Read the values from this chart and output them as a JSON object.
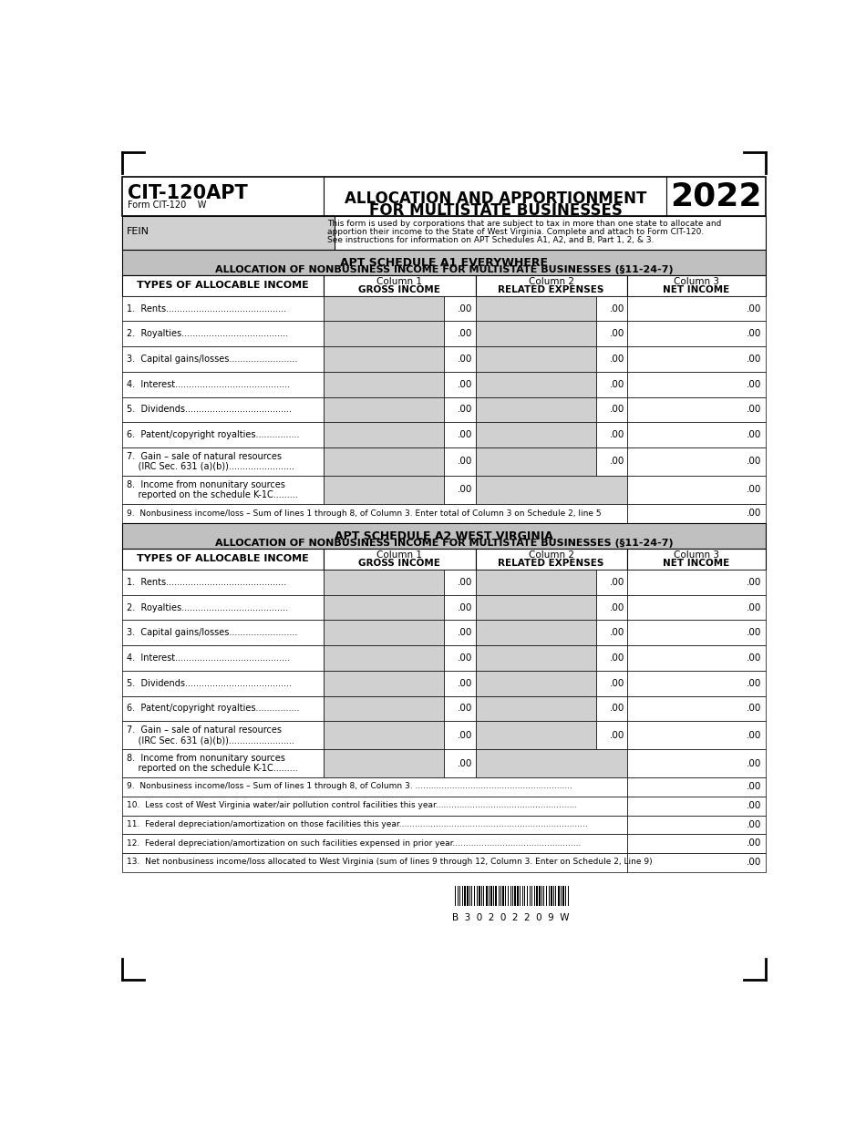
{
  "title_left_bold": "CIT-120APT",
  "title_left_sub": "Form CIT-120    W",
  "title_center_line1": "ALLOCATION AND APPORTIONMENT",
  "title_center_line2": "FOR MULTISTATE BUSINESSES",
  "title_year": "2022",
  "fein_label": "FEIN",
  "fein_desc_line1": "This form is used by corporations that are subject to tax in more than one state to allocate and",
  "fein_desc_line2": "apportion their income to the State of West Virginia. Complete and attach to Form CIT-120.",
  "fein_desc_line3": "See instructions for information on APT Schedules A1, A2, and B, Part 1, 2, & 3.",
  "a1_title1": "APT SCHEDULE A1 EVERYWHERE",
  "a1_title2": "ALLOCATION OF NONBUSINESS INCOME FOR MULTISTATE BUSINESSES (§11-24-7)",
  "a2_title1": "APT SCHEDULE A2 WEST VIRGINIA",
  "a2_title2": "ALLOCATION OF NONBUSINESS INCOME FOR MULTISTATE BUSINESSES (§11-24-7)",
  "col0_label": "TYPES OF ALLOCABLE INCOME",
  "col1_label1": "Column 1",
  "col1_label2": "GROSS INCOME",
  "col2_label1": "Column 2",
  "col2_label2": "RELATED EXPENSES",
  "col3_label1": "Column 3",
  "col3_label2": "NET INCOME",
  "row_labels": [
    [
      "1.  Rents............................................"
    ],
    [
      "2.  Royalties......................................."
    ],
    [
      "3.  Capital gains/losses........................."
    ],
    [
      "4.  Interest.........................................."
    ],
    [
      "5.  Dividends......................................."
    ],
    [
      "6.  Patent/copyright royalties................"
    ],
    [
      "7.  Gain – sale of natural resources",
      "    (IRC Sec. 631 (a)(b))........................"
    ],
    [
      "8.  Income from nonunitary sources",
      "    reported on the schedule K-1C........."
    ]
  ],
  "line9_a1_text": "9.  Nonbusiness income/loss – Sum of lines 1 through 8, of Column 3. Enter total of Column 3 on Schedule 2, line 5",
  "line9_a2_text": "9.  Nonbusiness income/loss – Sum of lines 1 through 8, of Column 3. ............................................................",
  "line10_text": "10.  Less cost of West Virginia water/air pollution control facilities this year......................................................",
  "line11_text": "11.  Federal depreciation/amortization on those facilities this year........................................................................",
  "line12_text": "12.  Federal depreciation/amortization on such facilities expensed in prior year.................................................",
  "line13_text": "13.  Net nonbusiness income/loss allocated to West Virginia (sum of lines 9 through 12, Column 3. Enter on Schedule 2, Line 9)",
  "barcode_text": "B  3  0  2  0  2  2  0  9  W",
  "shaded_col": "#d0d0d0",
  "section_bg": "#c0c0c0",
  "white": "#ffffff",
  "black": "#000000"
}
